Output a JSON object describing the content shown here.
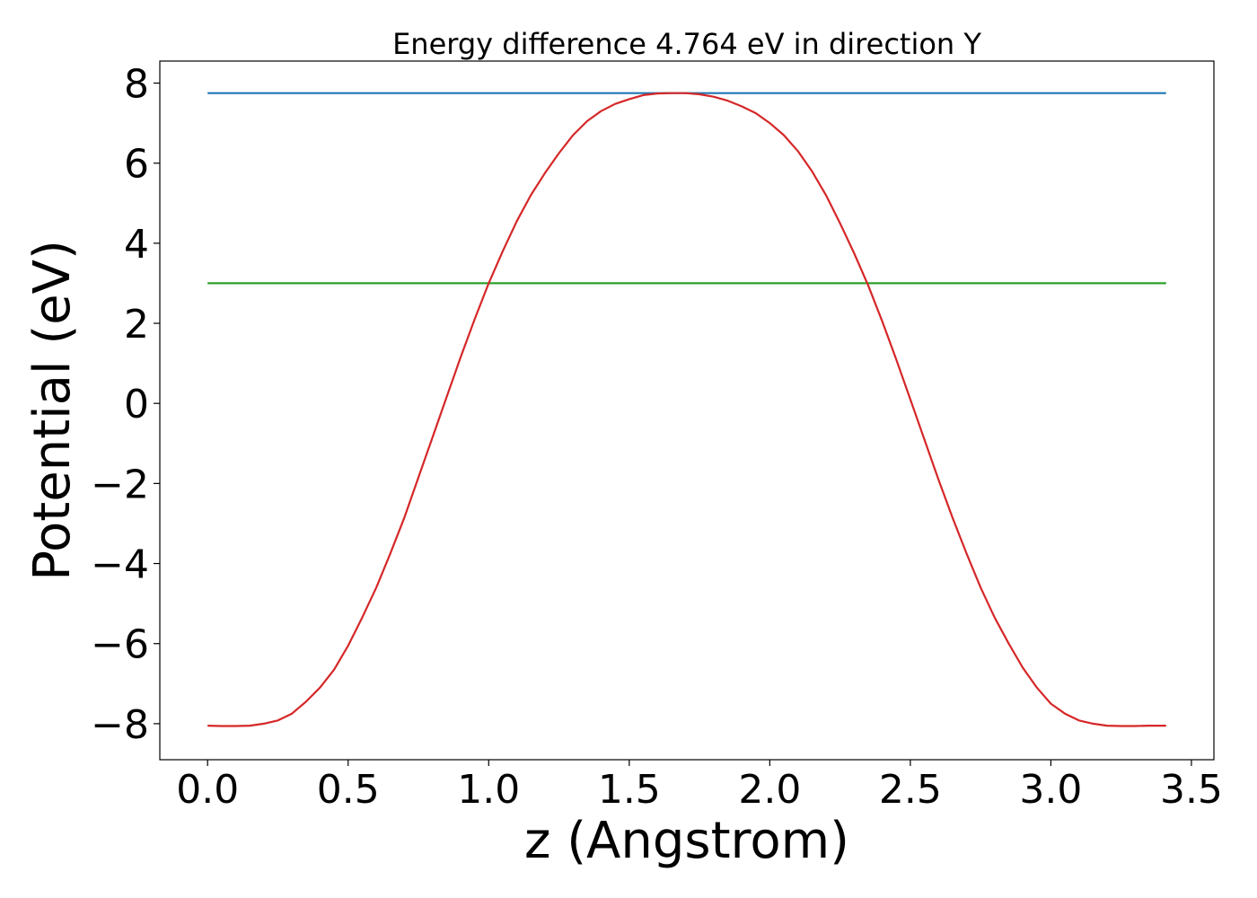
{
  "chart_data": {
    "type": "line",
    "title": "Energy difference 4.764 eV in direction Y",
    "xlabel": "z (Angstrom)",
    "ylabel": "Potential (eV)",
    "xlim": [
      -0.17,
      3.58
    ],
    "ylim": [
      -8.9,
      8.55
    ],
    "xticks": [
      0.0,
      0.5,
      1.0,
      1.5,
      2.0,
      2.5,
      3.0,
      3.5
    ],
    "yticks": [
      -8,
      -6,
      -4,
      -2,
      0,
      2,
      4,
      6,
      8
    ],
    "xtick_labels": [
      "0.0",
      "0.5",
      "1.0",
      "1.5",
      "2.0",
      "2.5",
      "3.0",
      "3.5"
    ],
    "ytick_labels": [
      "−8",
      "−6",
      "−4",
      "−2",
      "0",
      "2",
      "4",
      "6",
      "8"
    ],
    "grid": false,
    "series": [
      {
        "color": "#1f77b4",
        "x": [
          0.0,
          3.41
        ],
        "y": [
          7.75,
          7.75
        ]
      },
      {
        "color": "#2ca02c",
        "x": [
          0.0,
          3.41
        ],
        "y": [
          3.0,
          3.0
        ]
      },
      {
        "color": "#d62728",
        "x": [
          0.0,
          0.05,
          0.1,
          0.15,
          0.2,
          0.25,
          0.3,
          0.35,
          0.4,
          0.45,
          0.5,
          0.55,
          0.6,
          0.65,
          0.7,
          0.75,
          0.8,
          0.85,
          0.9,
          0.95,
          1.0,
          1.05,
          1.1,
          1.15,
          1.2,
          1.25,
          1.3,
          1.35,
          1.4,
          1.45,
          1.5,
          1.55,
          1.6,
          1.65,
          1.7,
          1.75,
          1.8,
          1.85,
          1.9,
          1.95,
          2.0,
          2.05,
          2.1,
          2.15,
          2.2,
          2.25,
          2.3,
          2.35,
          2.4,
          2.45,
          2.5,
          2.55,
          2.6,
          2.65,
          2.7,
          2.75,
          2.8,
          2.85,
          2.9,
          2.95,
          3.0,
          3.05,
          3.1,
          3.15,
          3.2,
          3.25,
          3.3,
          3.35,
          3.41
        ],
        "y": [
          -8.05,
          -8.06,
          -8.06,
          -8.05,
          -8.0,
          -7.92,
          -7.75,
          -7.45,
          -7.1,
          -6.65,
          -6.05,
          -5.35,
          -4.6,
          -3.75,
          -2.85,
          -1.85,
          -0.85,
          0.15,
          1.15,
          2.1,
          3.0,
          3.8,
          4.55,
          5.2,
          5.75,
          6.25,
          6.7,
          7.05,
          7.3,
          7.48,
          7.6,
          7.7,
          7.74,
          7.75,
          7.75,
          7.72,
          7.66,
          7.56,
          7.42,
          7.25,
          7.0,
          6.7,
          6.3,
          5.8,
          5.2,
          4.5,
          3.75,
          2.95,
          2.05,
          1.1,
          0.1,
          -0.9,
          -1.9,
          -2.85,
          -3.75,
          -4.6,
          -5.35,
          -6.0,
          -6.6,
          -7.1,
          -7.5,
          -7.75,
          -7.92,
          -8.0,
          -8.05,
          -8.06,
          -8.06,
          -8.05,
          -8.05
        ]
      }
    ]
  }
}
